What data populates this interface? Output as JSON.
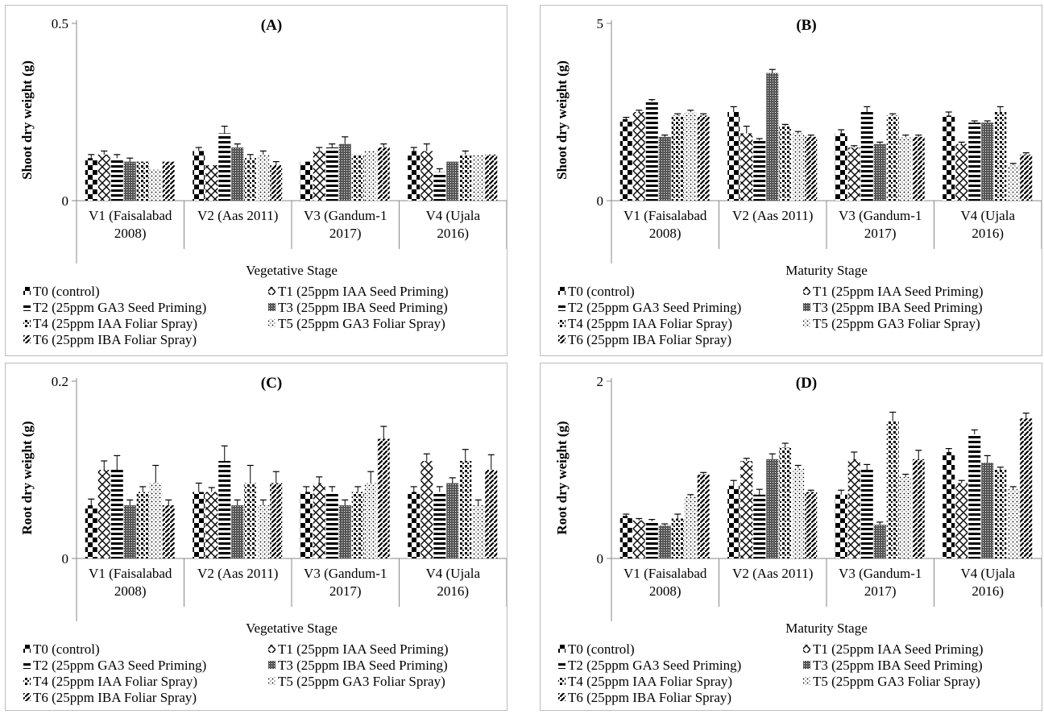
{
  "patterns": [
    "p-checker",
    "p-cross",
    "p-hstripe",
    "p-grid",
    "p-dots",
    "p-sparse",
    "p-diag"
  ],
  "chart_data": [
    {
      "id": "A",
      "type": "bar",
      "title": "(A)",
      "ylabel": "Shoot dry weight (g)",
      "xlabel": "Vegetative Stage",
      "ylim": [
        0,
        0.5
      ],
      "ytick_labels": [
        "0",
        "0.5"
      ],
      "categories": [
        [
          "V1 (Faisalabad",
          "2008)"
        ],
        [
          "V2 (Aas 2011)"
        ],
        [
          "V3 (Gandum-1",
          "2017)"
        ],
        [
          "V4 (Ujala",
          "2016)"
        ]
      ],
      "series": [
        {
          "name": "T0  (control)",
          "values": [
            0.12,
            0.14,
            0.11,
            0.14
          ],
          "errors": [
            0.01,
            0.01,
            0.0,
            0.01
          ]
        },
        {
          "name": "T1 (25ppm IAA Seed Priming)",
          "values": [
            0.13,
            0.1,
            0.14,
            0.14
          ],
          "errors": [
            0.01,
            0.0,
            0.01,
            0.02
          ]
        },
        {
          "name": "T2 (25ppm GA3 Seed Priming)",
          "values": [
            0.12,
            0.19,
            0.15,
            0.08
          ],
          "errors": [
            0.01,
            0.02,
            0.01,
            0.01
          ]
        },
        {
          "name": "T3 (25ppm IBA Seed Priming)",
          "values": [
            0.11,
            0.15,
            0.16,
            0.11
          ],
          "errors": [
            0.01,
            0.01,
            0.02,
            0.0
          ]
        },
        {
          "name": "T4 (25ppm IAA Foliar Spray)",
          "values": [
            0.11,
            0.12,
            0.13,
            0.13
          ],
          "errors": [
            0.0,
            0.01,
            0.0,
            0.01
          ]
        },
        {
          "name": "T5 (25ppm GA3 Foliar Spray)",
          "values": [
            0.09,
            0.13,
            0.14,
            0.13
          ],
          "errors": [
            0.0,
            0.01,
            0.0,
            0.0
          ]
        },
        {
          "name": "T6 (25ppm IBA Foliar Spray)",
          "values": [
            0.11,
            0.1,
            0.15,
            0.13
          ],
          "errors": [
            0.0,
            0.01,
            0.01,
            0.0
          ]
        }
      ]
    },
    {
      "id": "B",
      "type": "bar",
      "title": "(B)",
      "ylabel": "Shoot dry weight (g)",
      "xlabel": "Maturity Stage",
      "ylim": [
        0,
        5
      ],
      "ytick_labels": [
        "0",
        "5"
      ],
      "categories": [
        [
          "V1 (Faisalabad",
          "2008)"
        ],
        [
          "V2 (Aas 2011)"
        ],
        [
          "V3 (Gandum-1",
          "2017)"
        ],
        [
          "V4 (Ujala",
          "2016)"
        ]
      ],
      "series": [
        {
          "name": "T0  (control)",
          "values": [
            2.3,
            2.5,
            1.9,
            2.4
          ],
          "errors": [
            0.05,
            0.15,
            0.1,
            0.1
          ]
        },
        {
          "name": "T1 (25ppm IAA Seed Priming)",
          "values": [
            2.5,
            1.9,
            1.5,
            1.6
          ],
          "errors": [
            0.05,
            0.2,
            0.05,
            0.05
          ]
        },
        {
          "name": "T2 (25ppm GA3 Seed Priming)",
          "values": [
            2.8,
            1.7,
            2.5,
            2.2
          ],
          "errors": [
            0.05,
            0.05,
            0.15,
            0.05
          ]
        },
        {
          "name": "T3 (25ppm IBA Seed Priming)",
          "values": [
            1.8,
            3.6,
            1.6,
            2.2
          ],
          "errors": [
            0.05,
            0.1,
            0.05,
            0.05
          ]
        },
        {
          "name": "T4 (25ppm IAA Foliar Spray)",
          "values": [
            2.4,
            2.1,
            2.4,
            2.5
          ],
          "errors": [
            0.05,
            0.05,
            0.05,
            0.15
          ]
        },
        {
          "name": "T5 (25ppm GA3 Foliar Spray)",
          "values": [
            2.5,
            1.9,
            1.8,
            1.0
          ],
          "errors": [
            0.05,
            0.05,
            0.05,
            0.05
          ]
        },
        {
          "name": "T6 (25ppm IBA Foliar Spray)",
          "values": [
            2.4,
            1.8,
            1.8,
            1.3
          ],
          "errors": [
            0.05,
            0.05,
            0.05,
            0.05
          ]
        }
      ]
    },
    {
      "id": "C",
      "type": "bar",
      "title": "(C)",
      "ylabel": "Root dry weight (g)",
      "xlabel": "Vegetative Stage",
      "ylim": [
        0,
        0.2
      ],
      "ytick_labels": [
        "0",
        "0.2"
      ],
      "categories": [
        [
          "V1 (Faisalabad",
          "2008)"
        ],
        [
          "V2 (Aas 2011)"
        ],
        [
          "V3 (Gandum-1",
          "2017)"
        ],
        [
          "V4 (Ujala",
          "2016)"
        ]
      ],
      "series": [
        {
          "name": "T0  (control)",
          "values": [
            0.06,
            0.075,
            0.075,
            0.075
          ],
          "errors": [
            0.007,
            0.01,
            0.006,
            0.006
          ]
        },
        {
          "name": "T1 (25ppm IAA Seed Priming)",
          "values": [
            0.1,
            0.075,
            0.085,
            0.11
          ],
          "errors": [
            0.01,
            0.005,
            0.007,
            0.008
          ]
        },
        {
          "name": "T2 (25ppm GA3 Seed Priming)",
          "values": [
            0.1,
            0.11,
            0.075,
            0.075
          ],
          "errors": [
            0.016,
            0.017,
            0.006,
            0.006
          ]
        },
        {
          "name": "T3 (25ppm IBA Seed Priming)",
          "values": [
            0.06,
            0.06,
            0.06,
            0.085
          ],
          "errors": [
            0.006,
            0.006,
            0.006,
            0.006
          ]
        },
        {
          "name": "T4 (25ppm IAA Foliar Spray)",
          "values": [
            0.075,
            0.085,
            0.075,
            0.11
          ],
          "errors": [
            0.006,
            0.02,
            0.006,
            0.013
          ]
        },
        {
          "name": "T5 (25ppm GA3 Foliar Spray)",
          "values": [
            0.085,
            0.06,
            0.085,
            0.06
          ],
          "errors": [
            0.02,
            0.006,
            0.013,
            0.006
          ]
        },
        {
          "name": "T6 (25ppm IBA Foliar Spray)",
          "values": [
            0.06,
            0.085,
            0.135,
            0.1
          ],
          "errors": [
            0.006,
            0.013,
            0.014,
            0.017
          ]
        }
      ]
    },
    {
      "id": "D",
      "type": "bar",
      "title": "(D)",
      "ylabel": "Root dry weight (g)",
      "xlabel": "Maturity Stage",
      "ylim": [
        0,
        2
      ],
      "ytick_labels": [
        "0",
        "2"
      ],
      "categories": [
        [
          "V1 (Faisalabad",
          "2008)"
        ],
        [
          "V2 (Aas 2011)"
        ],
        [
          "V3 (Gandum-1",
          "2017)"
        ],
        [
          "V4 (Ujala",
          "2016)"
        ]
      ],
      "series": [
        {
          "name": "T0  (control)",
          "values": [
            0.48,
            0.82,
            0.72,
            1.2
          ],
          "errors": [
            0.02,
            0.06,
            0.05,
            0.04
          ]
        },
        {
          "name": "T1 (25ppm IAA Seed Priming)",
          "values": [
            0.43,
            1.1,
            1.12,
            0.85
          ],
          "errors": [
            0.02,
            0.03,
            0.08,
            0.03
          ]
        },
        {
          "name": "T2 (25ppm GA3 Seed Priming)",
          "values": [
            0.42,
            0.72,
            1.0,
            1.4
          ],
          "errors": [
            0.02,
            0.06,
            0.06,
            0.05
          ]
        },
        {
          "name": "T3 (25ppm IBA Seed Priming)",
          "values": [
            0.37,
            1.12,
            0.38,
            1.08
          ],
          "errors": [
            0.02,
            0.06,
            0.03,
            0.08
          ]
        },
        {
          "name": "T4 (25ppm IAA Foliar Spray)",
          "values": [
            0.45,
            1.25,
            1.55,
            1.0
          ],
          "errors": [
            0.05,
            0.05,
            0.1,
            0.03
          ]
        },
        {
          "name": "T5 (25ppm GA3 Foliar Spray)",
          "values": [
            0.7,
            1.02,
            0.92,
            0.78
          ],
          "errors": [
            0.02,
            0.03,
            0.03,
            0.03
          ]
        },
        {
          "name": "T6 (25ppm IBA Foliar Spray)",
          "values": [
            0.95,
            0.75,
            1.12,
            1.58
          ],
          "errors": [
            0.02,
            0.02,
            0.1,
            0.06
          ]
        }
      ]
    }
  ]
}
